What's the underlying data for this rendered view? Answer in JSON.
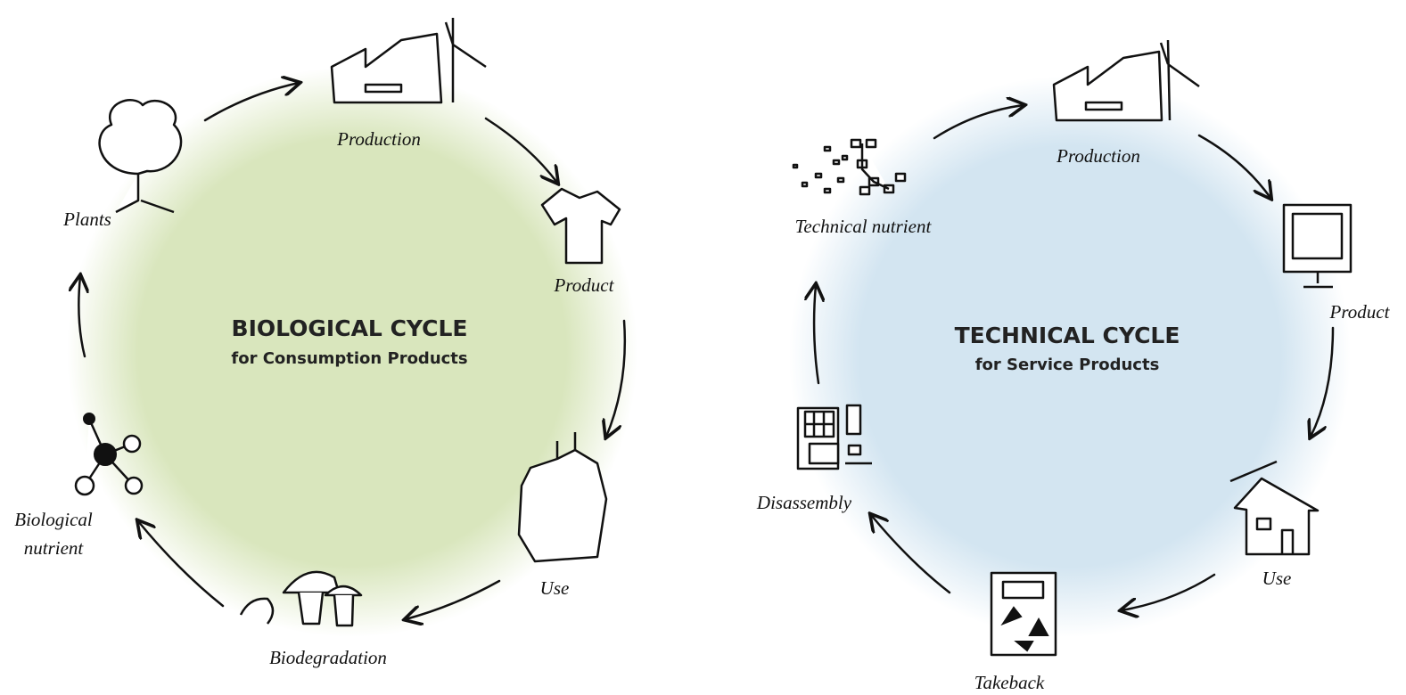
{
  "cycles": [
    {
      "title": "BIOLOGICAL CYCLE",
      "subtitle": "for Consumption Products",
      "nodes": [
        {
          "label": [
            "Production"
          ]
        },
        {
          "label": [
            "Product"
          ]
        },
        {
          "label": [
            "Use"
          ]
        },
        {
          "label": [
            "Biodegradation"
          ]
        },
        {
          "label": [
            "Biological",
            "nutrient"
          ]
        },
        {
          "label": [
            "Plants"
          ]
        }
      ]
    },
    {
      "title": "TECHNICAL CYCLE",
      "subtitle": "for Service Products",
      "nodes": [
        {
          "label": [
            "Production"
          ]
        },
        {
          "label": [
            "Product"
          ]
        },
        {
          "label": [
            "Use"
          ]
        },
        {
          "label": [
            "Takeback"
          ]
        },
        {
          "label": [
            "Disassembly"
          ]
        },
        {
          "label": [
            "Technical nutrient"
          ]
        }
      ]
    }
  ]
}
